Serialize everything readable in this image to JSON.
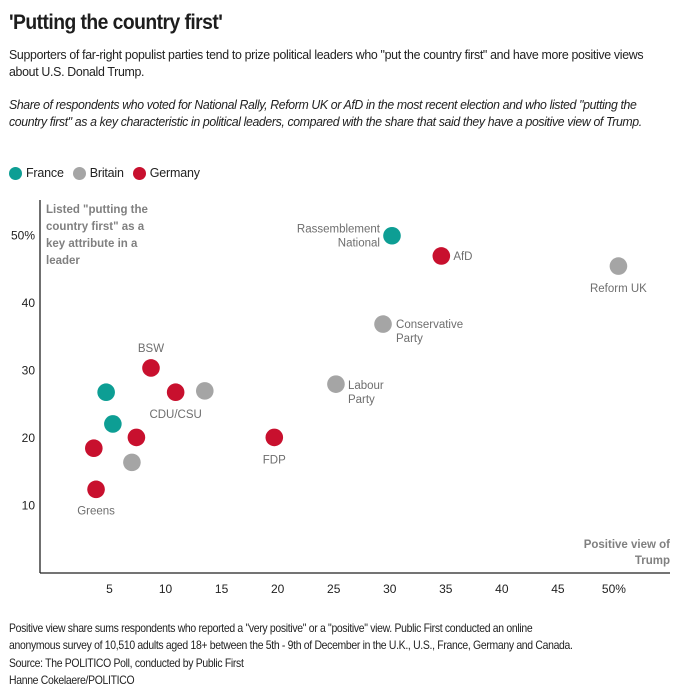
{
  "title": "'Putting the country first'",
  "subtitle": "Supporters of far-right populist parties tend to prize political leaders who \"put the country first\" and have more positive views about U.S. Donald Trump.",
  "description": "Share of respondents who voted for National Rally, Reform UK or AfD in the most recent election and who listed \"putting the country first\" as a key characteristic in political leaders, compared with the share that said they have a positive view of Trump.",
  "legend": [
    {
      "label": "France",
      "color": "#0d9e94"
    },
    {
      "label": "Britain",
      "color": "#a5a5a5"
    },
    {
      "label": "Germany",
      "color": "#c8102e"
    }
  ],
  "footer": {
    "note_line1": "Positive view share sums respondents who reported a \"very positive\" or a \"positive\" view. Public First conducted an online",
    "note_line2": "anonymous survey of 10,510 adults aged 18+ between the 5th - 9th of December in the U.K., U.S., France, Germany and Canada.",
    "source": "Source: The POLITICO Poll, conducted by Public First",
    "credit": "Hanne Cokelaere/POLITICO"
  },
  "chart_data": {
    "type": "scatter",
    "title": "'Putting the country first'",
    "xlabel": "Positive view of Trump",
    "ylabel": "Listed \"putting the country first\" as a key attribute in a leader",
    "xlim": [
      -1.2,
      55
    ],
    "ylim": [
      0,
      55.3
    ],
    "x_ticks": [
      5,
      10,
      15,
      20,
      25,
      30,
      35,
      40,
      45,
      50
    ],
    "x_tick_labels": [
      "5",
      "10",
      "15",
      "20",
      "25",
      "30",
      "35",
      "40",
      "45",
      "50%"
    ],
    "y_ticks": [
      10,
      20,
      30,
      40,
      50
    ],
    "y_tick_labels": [
      "10",
      "20",
      "30",
      "40",
      "50%"
    ],
    "grid": false,
    "legend_position": "top-left",
    "series": [
      {
        "name": "France",
        "color": "#0d9e94",
        "points": [
          {
            "x": 30.2,
            "y": 50.0,
            "label": "Rassemblement National"
          },
          {
            "x": 4.7,
            "y": 26.8,
            "label": ""
          },
          {
            "x": 5.3,
            "y": 22.1,
            "label": ""
          }
        ]
      },
      {
        "name": "Britain",
        "color": "#a5a5a5",
        "points": [
          {
            "x": 50.4,
            "y": 45.5,
            "label": "Reform UK"
          },
          {
            "x": 29.4,
            "y": 36.9,
            "label": "Conservative Party"
          },
          {
            "x": 25.2,
            "y": 28.0,
            "label": "Labour Party"
          },
          {
            "x": 13.5,
            "y": 27.0,
            "label": ""
          },
          {
            "x": 7.0,
            "y": 16.4,
            "label": ""
          }
        ]
      },
      {
        "name": "Germany",
        "color": "#c8102e",
        "points": [
          {
            "x": 34.6,
            "y": 47.0,
            "label": "AfD"
          },
          {
            "x": 8.7,
            "y": 30.4,
            "label": "BSW"
          },
          {
            "x": 10.9,
            "y": 26.8,
            "label": "CDU/CSU"
          },
          {
            "x": 19.7,
            "y": 20.1,
            "label": "FDP"
          },
          {
            "x": 7.4,
            "y": 20.1,
            "label": ""
          },
          {
            "x": 3.6,
            "y": 18.5,
            "label": ""
          },
          {
            "x": 3.8,
            "y": 12.4,
            "label": "Greens"
          }
        ]
      }
    ]
  }
}
